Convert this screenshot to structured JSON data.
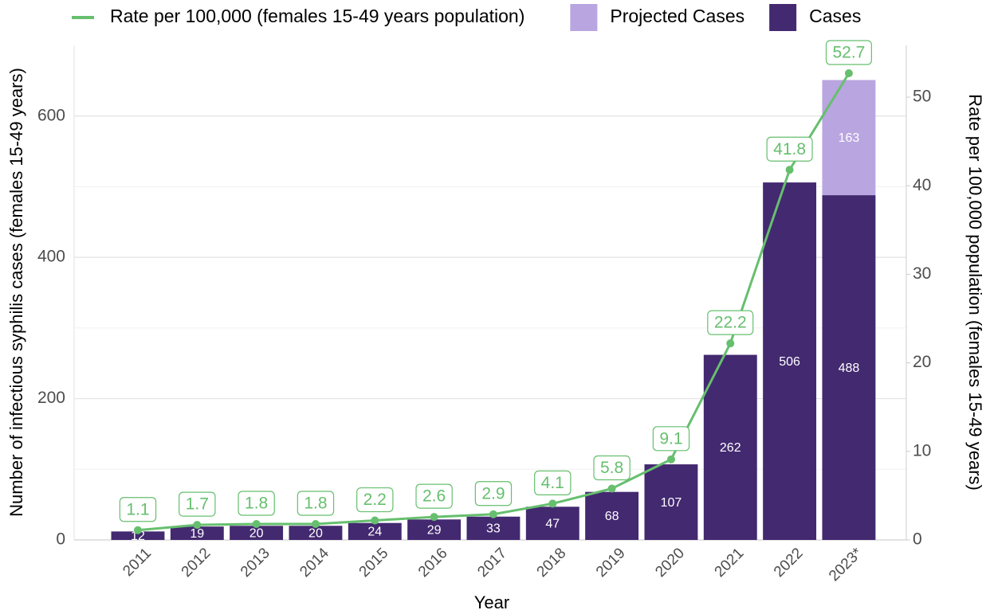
{
  "chart_data": {
    "type": "bar",
    "x_label": "Year",
    "y_label": "Number of infectious syphilis cases (females 15-49 years)",
    "y2_label": "Rate per 100,000 population (females 15-49 years)",
    "categories": [
      "2011",
      "2012",
      "2013",
      "2014",
      "2015",
      "2016",
      "2017",
      "2018",
      "2019",
      "2020",
      "2021",
      "2022",
      "2023*"
    ],
    "series": [
      {
        "name": "Rate per 100,000 (females 15-49 years population)",
        "type": "line",
        "axis": "y2",
        "color": "#66bf6e",
        "values": [
          1.1,
          1.7,
          1.8,
          1.8,
          2.2,
          2.6,
          2.9,
          4.1,
          5.8,
          9.1,
          22.2,
          41.8,
          52.7
        ]
      },
      {
        "name": "Projected Cases",
        "type": "bar",
        "color": "#b9a5df",
        "values": [
          null,
          null,
          null,
          null,
          null,
          null,
          null,
          null,
          null,
          null,
          null,
          null,
          163
        ]
      },
      {
        "name": "Cases",
        "type": "bar",
        "color": "#432970",
        "values": [
          12,
          19,
          20,
          20,
          24,
          29,
          33,
          47,
          68,
          107,
          262,
          506,
          488
        ]
      }
    ],
    "ylim": [
      0,
      700
    ],
    "yticks": [
      0,
      200,
      400,
      600
    ],
    "y_minor_grid": [
      100,
      300,
      500
    ],
    "y2lim": [
      0,
      55.85
    ],
    "y2ticks": [
      0,
      10,
      20,
      30,
      40,
      50
    ],
    "grid": true,
    "legend": "top"
  }
}
